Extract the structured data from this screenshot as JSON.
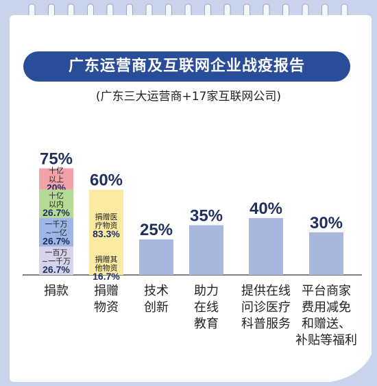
{
  "title": "广东运营商及互联网企业战疫报告",
  "subtitle": "(广东三大运营商+17家互联网公司)",
  "colors": {
    "banner": "#2a4d9a",
    "bar": "#a9b7df",
    "gold": "#fbeaa2",
    "red": "#f1a3a9",
    "green": "#b7d996",
    "blue": "#9db6e5",
    "lavender": "#d6d4ea",
    "baseline": "#555555"
  },
  "chart_data": {
    "type": "bar",
    "title": "广东运营商及互联网企业战疫报告",
    "subtitle": "(广东三大运营商+17家互联网公司)",
    "categories": [
      "捐款",
      "捐赠物资",
      "技术创新",
      "助力在线教育",
      "提供在线问诊医疗科普服务",
      "平台商家费用减免和赠送、补贴等福利"
    ],
    "category_lines": [
      [
        "捐款"
      ],
      [
        "捐赠",
        "物资"
      ],
      [
        "技术",
        "创新"
      ],
      [
        "助力",
        "在线",
        "教育"
      ],
      [
        "提供在线",
        "问诊医疗",
        "科普服务"
      ],
      [
        "平台商家",
        "费用减免",
        "和赠送、",
        "补贴等福利"
      ]
    ],
    "values": [
      75,
      60,
      25,
      35,
      40,
      30
    ],
    "value_labels": [
      "75%",
      "60%",
      "25%",
      "35%",
      "40%",
      "30%"
    ],
    "unit": "%",
    "stacks": [
      {
        "category": "捐款",
        "segments": [
          {
            "label_lines": [
              "十亿",
              "以上"
            ],
            "value_label": "20%",
            "share": 20,
            "color": "red"
          },
          {
            "label_lines": [
              "十亿",
              "以内"
            ],
            "value_label": "26.7%",
            "share": 26.7,
            "color": "green"
          },
          {
            "label_lines": [
              "一千万",
              "~一亿"
            ],
            "value_label": "26.7%",
            "share": 26.7,
            "color": "blue"
          },
          {
            "label_lines": [
              "一百万",
              "~一千万"
            ],
            "value_label": "26.7%",
            "share": 26.7,
            "color": "lavender"
          }
        ]
      },
      {
        "category": "捐赠物资",
        "segments": [
          {
            "label_lines": [
              "捐赠医",
              "疗物资"
            ],
            "value_label": "83.3%",
            "share": 83.3,
            "color": "gold"
          },
          {
            "label_lines": [
              "捐赠其",
              "他物资"
            ],
            "value_label": "16.7%",
            "share": 16.7,
            "color": "gold"
          }
        ]
      }
    ]
  }
}
